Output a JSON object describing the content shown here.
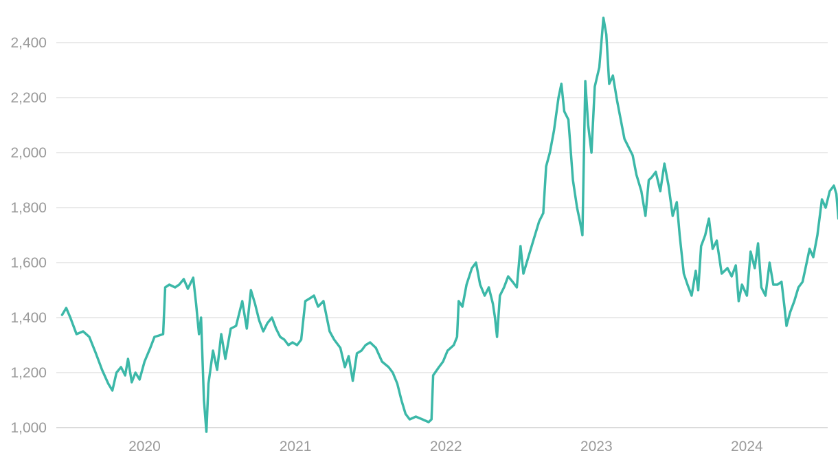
{
  "chart_data": {
    "type": "line",
    "title": "",
    "xlabel": "",
    "ylabel": "",
    "ylim": [
      1000,
      2500
    ],
    "xlim": [
      "2019-06-01",
      "2024-07-15"
    ],
    "grid": true,
    "legend": "none",
    "y_ticks": [
      {
        "value": 1000,
        "label": "1,000"
      },
      {
        "value": 1200,
        "label": "1,200"
      },
      {
        "value": 1400,
        "label": "1,400"
      },
      {
        "value": 1600,
        "label": "1,600"
      },
      {
        "value": 1800,
        "label": "1,800"
      },
      {
        "value": 2000,
        "label": "2,000"
      },
      {
        "value": 2200,
        "label": "2,200"
      },
      {
        "value": 2400,
        "label": "2,400"
      }
    ],
    "x_ticks": [
      {
        "value": "2020-01-01",
        "label": "2020"
      },
      {
        "value": "2021-01-01",
        "label": "2021"
      },
      {
        "value": "2022-01-01",
        "label": "2022"
      },
      {
        "value": "2023-01-01",
        "label": "2023"
      },
      {
        "value": "2024-01-01",
        "label": "2024"
      }
    ],
    "series": [
      {
        "color": "#3cb8a8",
        "points": [
          [
            "2019-06-15",
            1410
          ],
          [
            "2019-06-25",
            1435
          ],
          [
            "2019-07-05",
            1400
          ],
          [
            "2019-07-20",
            1340
          ],
          [
            "2019-08-05",
            1350
          ],
          [
            "2019-08-20",
            1330
          ],
          [
            "2019-09-05",
            1270
          ],
          [
            "2019-09-20",
            1210
          ],
          [
            "2019-10-05",
            1160
          ],
          [
            "2019-10-15",
            1135
          ],
          [
            "2019-10-25",
            1200
          ],
          [
            "2019-11-05",
            1220
          ],
          [
            "2019-11-15",
            1190
          ],
          [
            "2019-11-22",
            1250
          ],
          [
            "2019-12-01",
            1165
          ],
          [
            "2019-12-10",
            1200
          ],
          [
            "2019-12-20",
            1175
          ],
          [
            "2020-01-01",
            1240
          ],
          [
            "2020-01-15",
            1290
          ],
          [
            "2020-01-25",
            1330
          ],
          [
            "2020-02-05",
            1335
          ],
          [
            "2020-02-15",
            1340
          ],
          [
            "2020-02-20",
            1510
          ],
          [
            "2020-03-01",
            1520
          ],
          [
            "2020-03-15",
            1510
          ],
          [
            "2020-03-25",
            1520
          ],
          [
            "2020-04-05",
            1540
          ],
          [
            "2020-04-15",
            1505
          ],
          [
            "2020-04-28",
            1545
          ],
          [
            "2020-05-05",
            1450
          ],
          [
            "2020-05-12",
            1340
          ],
          [
            "2020-05-17",
            1400
          ],
          [
            "2020-05-24",
            1100
          ],
          [
            "2020-05-30",
            985
          ],
          [
            "2020-06-04",
            1160
          ],
          [
            "2020-06-15",
            1280
          ],
          [
            "2020-06-25",
            1210
          ],
          [
            "2020-07-05",
            1340
          ],
          [
            "2020-07-15",
            1250
          ],
          [
            "2020-07-28",
            1360
          ],
          [
            "2020-08-10",
            1370
          ],
          [
            "2020-08-25",
            1460
          ],
          [
            "2020-09-05",
            1360
          ],
          [
            "2020-09-15",
            1500
          ],
          [
            "2020-09-25",
            1450
          ],
          [
            "2020-10-05",
            1390
          ],
          [
            "2020-10-15",
            1350
          ],
          [
            "2020-10-25",
            1380
          ],
          [
            "2020-11-05",
            1400
          ],
          [
            "2020-11-15",
            1360
          ],
          [
            "2020-11-25",
            1330
          ],
          [
            "2020-12-05",
            1320
          ],
          [
            "2020-12-15",
            1300
          ],
          [
            "2020-12-25",
            1310
          ],
          [
            "2021-01-05",
            1300
          ],
          [
            "2021-01-15",
            1320
          ],
          [
            "2021-01-25",
            1460
          ],
          [
            "2021-02-05",
            1470
          ],
          [
            "2021-02-15",
            1480
          ],
          [
            "2021-02-25",
            1440
          ],
          [
            "2021-03-10",
            1460
          ],
          [
            "2021-03-25",
            1350
          ],
          [
            "2021-04-05",
            1320
          ],
          [
            "2021-04-20",
            1290
          ],
          [
            "2021-05-01",
            1220
          ],
          [
            "2021-05-10",
            1260
          ],
          [
            "2021-05-20",
            1170
          ],
          [
            "2021-05-30",
            1270
          ],
          [
            "2021-06-10",
            1280
          ],
          [
            "2021-06-20",
            1300
          ],
          [
            "2021-07-01",
            1310
          ],
          [
            "2021-07-15",
            1290
          ],
          [
            "2021-07-30",
            1240
          ],
          [
            "2021-08-15",
            1220
          ],
          [
            "2021-08-25",
            1200
          ],
          [
            "2021-09-05",
            1160
          ],
          [
            "2021-09-15",
            1100
          ],
          [
            "2021-09-25",
            1050
          ],
          [
            "2021-10-05",
            1030
          ],
          [
            "2021-10-20",
            1040
          ],
          [
            "2021-11-05",
            1030
          ],
          [
            "2021-11-20",
            1020
          ],
          [
            "2021-11-27",
            1030
          ],
          [
            "2021-12-01",
            1190
          ],
          [
            "2021-12-15",
            1220
          ],
          [
            "2021-12-25",
            1240
          ],
          [
            "2022-01-05",
            1280
          ],
          [
            "2022-01-20",
            1300
          ],
          [
            "2022-01-28",
            1330
          ],
          [
            "2022-02-01",
            1460
          ],
          [
            "2022-02-10",
            1440
          ],
          [
            "2022-02-20",
            1520
          ],
          [
            "2022-03-05",
            1580
          ],
          [
            "2022-03-15",
            1600
          ],
          [
            "2022-03-25",
            1520
          ],
          [
            "2022-04-05",
            1480
          ],
          [
            "2022-04-15",
            1510
          ],
          [
            "2022-04-25",
            1450
          ],
          [
            "2022-04-30",
            1400
          ],
          [
            "2022-05-05",
            1330
          ],
          [
            "2022-05-12",
            1480
          ],
          [
            "2022-05-22",
            1510
          ],
          [
            "2022-06-01",
            1550
          ],
          [
            "2022-06-12",
            1530
          ],
          [
            "2022-06-22",
            1510
          ],
          [
            "2022-07-01",
            1660
          ],
          [
            "2022-07-08",
            1560
          ],
          [
            "2022-07-20",
            1620
          ],
          [
            "2022-08-01",
            1680
          ],
          [
            "2022-08-15",
            1750
          ],
          [
            "2022-08-25",
            1780
          ],
          [
            "2022-09-01",
            1950
          ],
          [
            "2022-09-10",
            2000
          ],
          [
            "2022-09-20",
            2080
          ],
          [
            "2022-10-01",
            2200
          ],
          [
            "2022-10-08",
            2250
          ],
          [
            "2022-10-15",
            2150
          ],
          [
            "2022-10-25",
            2120
          ],
          [
            "2022-11-05",
            1900
          ],
          [
            "2022-11-15",
            1800
          ],
          [
            "2022-11-22",
            1750
          ],
          [
            "2022-11-28",
            1700
          ],
          [
            "2022-12-05",
            2260
          ],
          [
            "2022-12-12",
            2100
          ],
          [
            "2022-12-20",
            2000
          ],
          [
            "2022-12-28",
            2240
          ],
          [
            "2023-01-08",
            2310
          ],
          [
            "2023-01-18",
            2490
          ],
          [
            "2023-01-25",
            2430
          ],
          [
            "2023-02-01",
            2250
          ],
          [
            "2023-02-10",
            2280
          ],
          [
            "2023-02-20",
            2190
          ],
          [
            "2023-03-01",
            2120
          ],
          [
            "2023-03-10",
            2050
          ],
          [
            "2023-03-20",
            2020
          ],
          [
            "2023-03-30",
            1990
          ],
          [
            "2023-04-08",
            1920
          ],
          [
            "2023-04-20",
            1860
          ],
          [
            "2023-04-30",
            1770
          ],
          [
            "2023-05-08",
            1900
          ],
          [
            "2023-05-15",
            1910
          ],
          [
            "2023-05-25",
            1930
          ],
          [
            "2023-06-05",
            1860
          ],
          [
            "2023-06-15",
            1960
          ],
          [
            "2023-06-25",
            1880
          ],
          [
            "2023-07-05",
            1770
          ],
          [
            "2023-07-15",
            1820
          ],
          [
            "2023-07-22",
            1700
          ],
          [
            "2023-08-01",
            1560
          ],
          [
            "2023-08-10",
            1520
          ],
          [
            "2023-08-20",
            1480
          ],
          [
            "2023-08-30",
            1570
          ],
          [
            "2023-09-05",
            1500
          ],
          [
            "2023-09-12",
            1660
          ],
          [
            "2023-09-22",
            1700
          ],
          [
            "2023-10-01",
            1760
          ],
          [
            "2023-10-10",
            1650
          ],
          [
            "2023-10-20",
            1680
          ],
          [
            "2023-11-01",
            1560
          ],
          [
            "2023-11-15",
            1580
          ],
          [
            "2023-11-25",
            1550
          ],
          [
            "2023-12-05",
            1590
          ],
          [
            "2023-12-12",
            1460
          ],
          [
            "2023-12-20",
            1520
          ],
          [
            "2024-01-01",
            1480
          ],
          [
            "2024-01-10",
            1640
          ],
          [
            "2024-01-20",
            1580
          ],
          [
            "2024-01-28",
            1670
          ],
          [
            "2024-02-05",
            1510
          ],
          [
            "2024-02-15",
            1480
          ],
          [
            "2024-02-25",
            1600
          ],
          [
            "2024-03-05",
            1520
          ],
          [
            "2024-03-15",
            1520
          ],
          [
            "2024-03-25",
            1530
          ],
          [
            "2024-04-01",
            1440
          ],
          [
            "2024-04-06",
            1370
          ],
          [
            "2024-04-15",
            1420
          ],
          [
            "2024-04-25",
            1460
          ],
          [
            "2024-05-05",
            1510
          ],
          [
            "2024-05-15",
            1530
          ],
          [
            "2024-05-25",
            1600
          ],
          [
            "2024-06-01",
            1650
          ],
          [
            "2024-06-10",
            1620
          ],
          [
            "2024-06-20",
            1700
          ],
          [
            "2024-07-01",
            1830
          ],
          [
            "2024-07-10",
            1800
          ],
          [
            "2024-07-20",
            1860
          ],
          [
            "2024-07-30",
            1880
          ],
          [
            "2024-08-05",
            1850
          ],
          [
            "2024-08-10",
            1760
          ],
          [
            "2024-08-15",
            1780
          ]
        ]
      }
    ]
  }
}
